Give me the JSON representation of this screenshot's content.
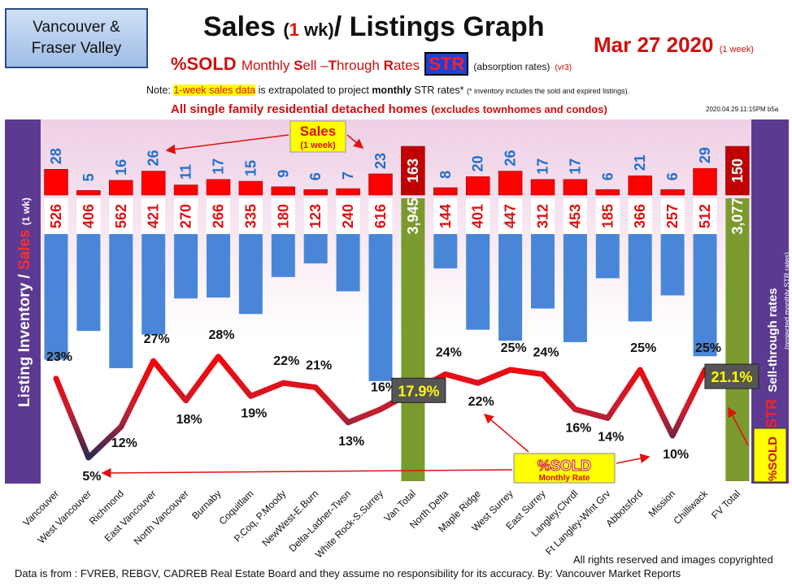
{
  "header": {
    "region_line1": "Vancouver &",
    "region_line2": "Fraser Valley",
    "title_a": "Sales",
    "title_b": "(",
    "title_c": "1",
    "title_d": " wk)",
    "title_e": "/ Listings Graph",
    "date": "Mar 27  2020",
    "date_note": "(1 week)",
    "sub_sold": "%SOLD",
    "sub_monthly": "Monthly",
    "sub_s": "S",
    "sub_ell": "ell –",
    "sub_t": "T",
    "sub_hrough": "hrough",
    "sub_r": "R",
    "sub_ates": "ates",
    "sub_str": "STR",
    "sub_absorb": "(absorption rates)",
    "sub_vr": "(vr3)",
    "note_a": "Note:",
    "note_hl": "1-week sales data",
    "note_b": "is extrapolated to project",
    "note_bold": "monthly",
    "note_c": "STR rates*",
    "note_tiny": "(* inventory includes the sold and expired listings).",
    "scope": "All single family residential detached homes",
    "scope_small": "(excludes townhomes and condos)",
    "stamp": "2020.04.29.11:15PM b5a"
  },
  "banners": {
    "left_a": "Listing Inventory /",
    "left_b": "Sales",
    "left_c": "(1 wk)",
    "right_a": "%SOLD",
    "right_b": "STR",
    "right_c": "Sell-through rates",
    "right_d": "(projected monthly STR rates)"
  },
  "annotations": {
    "sales_label": "Sales",
    "sales_sub": "(1 week)",
    "sold_label": "%SOLD",
    "sold_sub": "Monthly Rate",
    "van_total_str": "17.9%",
    "fv_total_str": "21.1%"
  },
  "footer": {
    "source": "Data is from : FVREB, REBGV, CADREB Real Estate Board and they assume no responsibility for its accuracy. By: Vancouver Market Reports",
    "rights": "All rights reserved and  images copyrighted"
  },
  "colors": {
    "sales_bar": "#ff0000",
    "total_sales_bar": "#c00000",
    "listings_bar": "#4a86d8",
    "total_listings_bar": "#7a9a2e",
    "line_high": "#ff0000",
    "line_low": "#1a2a55",
    "sales_value": "#1f6fd0",
    "listings_value": "#e01010"
  },
  "chart_data": {
    "type": "bar",
    "categories": [
      "Vancouver",
      "West Vancouver",
      "Richmond",
      "East Vancouver",
      "North Vancouver",
      "Burnaby",
      "Coquitlam",
      "P.Coq, P.Moody",
      "NewWest-E.Burn",
      "Delta-Ladner-Twsn",
      "White Rock-S.Surrey",
      "Van Total",
      "North Delta",
      "Maple Ridge",
      "West Surrey",
      "East Surrey",
      "Langley,Clvrdl",
      "Ft Langley-Wlnt Grv",
      "Abbotsford",
      "Mission",
      "Chilliwack",
      "FV Total"
    ],
    "series": [
      {
        "name": "Sales",
        "values": [
          28,
          5,
          16,
          26,
          11,
          17,
          15,
          9,
          6,
          7,
          23,
          163,
          8,
          20,
          26,
          17,
          17,
          6,
          21,
          6,
          29,
          150
        ]
      },
      {
        "name": "Listing Inventory",
        "values": [
          526,
          406,
          562,
          421,
          270,
          266,
          335,
          180,
          123,
          240,
          616,
          3945,
          144,
          401,
          447,
          312,
          453,
          185,
          366,
          257,
          512,
          3077
        ]
      },
      {
        "name": "%SOLD",
        "values": [
          23,
          5,
          12,
          27,
          18,
          28,
          19,
          22,
          21,
          13,
          16,
          17.9,
          24,
          22,
          25,
          24,
          16,
          14,
          25,
          10,
          25,
          21.1
        ]
      }
    ],
    "sold_labels": [
      "23%",
      "5%",
      "12%",
      "27%",
      "18%",
      "28%",
      "19%",
      "22%",
      "21%",
      "13%",
      "16%",
      "17.9%",
      "24%",
      "22%",
      "25%",
      "24%",
      "16%",
      "14%",
      "25%",
      "10%",
      "25%",
      "21.1%"
    ],
    "sales_labels": [
      "28",
      "5",
      "16",
      "26",
      "11",
      "17",
      "15",
      "9",
      "6",
      "7",
      "23",
      "163",
      "8",
      "20",
      "26",
      "17",
      "17",
      "6",
      "21",
      "6",
      "29",
      "150"
    ],
    "listing_labels": [
      "526",
      "406",
      "562",
      "421",
      "270",
      "266",
      "335",
      "180",
      "123",
      "240",
      "616",
      "3,945",
      "144",
      "401",
      "447",
      "312",
      "453",
      "185",
      "366",
      "257",
      "512",
      "3,077"
    ],
    "total_indices": [
      11,
      21
    ]
  }
}
